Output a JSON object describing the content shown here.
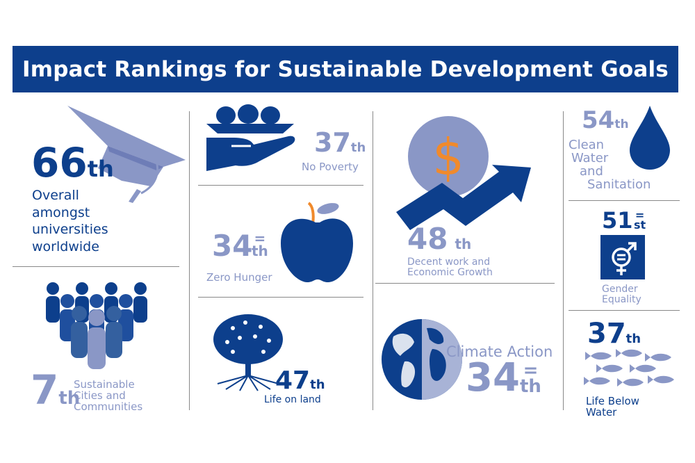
{
  "title": "Impact Rankings for Sustainable Development Goals",
  "colors": {
    "dark_blue": "#0d3f8c",
    "light_blue": "#8a97c6",
    "orange": "#f08a2c"
  },
  "overall": {
    "rank": "66",
    "suffix": "th",
    "label": [
      "Overall",
      "amongst",
      "universities",
      "worldwide"
    ],
    "icon": "graduation-cap-icon"
  },
  "cities": {
    "rank": "7",
    "suffix": "th",
    "label": [
      "Sustainable",
      "Cities and",
      "Communities"
    ],
    "icon": "people-group-icon"
  },
  "poverty": {
    "rank": "37",
    "suffix": "th",
    "label": "No Poverty",
    "icon": "hand-giving-icon"
  },
  "hunger": {
    "rank": "34",
    "eq": "=",
    "suffix": "th",
    "label": "Zero Hunger",
    "icon": "apple-icon"
  },
  "land": {
    "rank": "47",
    "suffix": "th",
    "label": "Life on land",
    "icon": "tree-icon"
  },
  "work": {
    "rank": "48",
    "suffix": "th",
    "label": [
      "Decent work and",
      "Economic Growth"
    ],
    "icon": "dollar-growth-icon"
  },
  "climate": {
    "rank": "34",
    "eq": "=",
    "suffix": "th",
    "label": "Climate Action",
    "icon": "globe-icon"
  },
  "water": {
    "rank": "54",
    "suffix": "th",
    "label": [
      "Clean",
      "Water",
      "and",
      "Sanitation"
    ],
    "icon": "water-drop-icon"
  },
  "gender": {
    "rank": "51",
    "eq": "=",
    "suffix": "st",
    "label": [
      "Gender",
      "Equality"
    ],
    "icon": "gender-equality-icon"
  },
  "below_water": {
    "rank": "37",
    "suffix": "th",
    "label": [
      "Life Below",
      "Water"
    ],
    "icon": "fish-school-icon"
  }
}
